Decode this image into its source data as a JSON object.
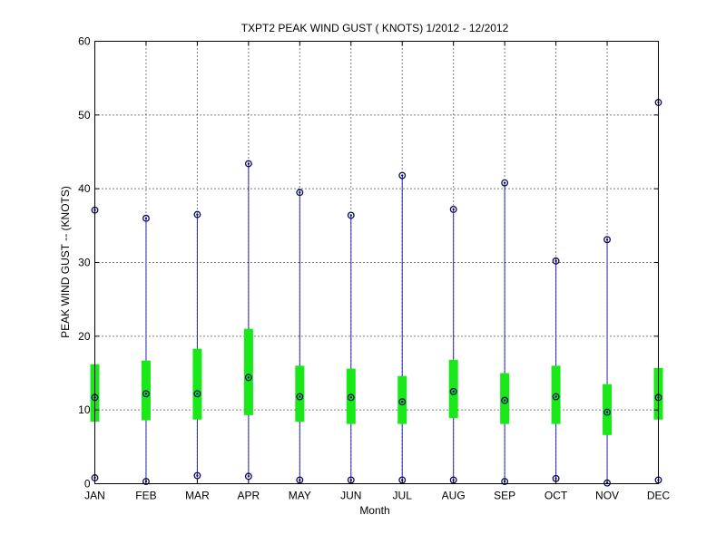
{
  "chart_data": {
    "type": "box",
    "title": "TXPT2  PEAK WIND GUST ( KNOTS) 1/2012 - 12/2012",
    "xlabel": "Month",
    "ylabel": "PEAK WIND GUST -- (KNOTS)",
    "ylim": [
      0,
      60
    ],
    "yticks": [
      "0",
      "10",
      "20",
      "30",
      "40",
      "50",
      "60"
    ],
    "grid": true,
    "categories": [
      "JAN",
      "FEB",
      "MAR",
      "APR",
      "MAY",
      "JUN",
      "JUL",
      "AUG",
      "SEP",
      "OCT",
      "NOV",
      "DEC"
    ],
    "min": [
      0.8,
      0.3,
      1.1,
      1.0,
      0.5,
      0.5,
      0.5,
      0.5,
      0.3,
      0.7,
      0.1,
      0.5
    ],
    "q1": [
      8.4,
      8.6,
      8.7,
      9.3,
      8.4,
      8.1,
      8.1,
      8.9,
      8.1,
      8.1,
      6.6,
      8.7
    ],
    "median": [
      11.7,
      12.2,
      12.2,
      14.4,
      11.8,
      11.7,
      11.1,
      12.5,
      11.3,
      11.8,
      9.7,
      11.7
    ],
    "q3": [
      16.2,
      16.7,
      18.3,
      21.0,
      16.0,
      15.6,
      14.6,
      16.8,
      15.0,
      16.0,
      13.5,
      15.7
    ],
    "max": [
      37.1,
      36.0,
      36.5,
      43.4,
      39.5,
      36.4,
      41.8,
      37.2,
      40.8,
      30.2,
      33.1,
      51.7
    ]
  }
}
